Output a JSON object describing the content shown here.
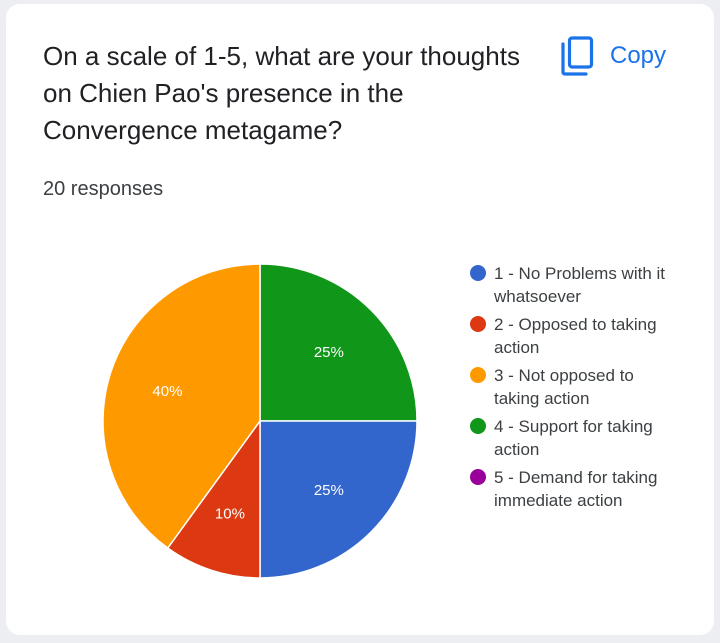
{
  "card": {
    "question": "On a scale of 1-5, what are your thoughts on Chien Pao's presence in the Convergence metagame?",
    "responses": "20 responses",
    "copy_label": "Copy",
    "copy_icon": "copy-icon"
  },
  "chart_data": {
    "type": "pie",
    "categories": [
      "1 - No Problems with it whatsoever",
      "2 - Opposed to taking action",
      "3 - Not opposed to taking action",
      "4 - Support for taking action",
      "5 - Demand for taking immediate action"
    ],
    "values": [
      25,
      10,
      40,
      25,
      0
    ],
    "counts": [
      5,
      2,
      8,
      5,
      0
    ],
    "slice_labels": [
      "25%",
      "10%",
      "40%",
      "25%",
      ""
    ],
    "colors": [
      "#3366cc",
      "#dc3912",
      "#ff9900",
      "#109618",
      "#990099"
    ],
    "label_colors": [
      "#ffffff",
      "#ffffff",
      "#ffffff",
      "#ffffff",
      "#ffffff"
    ],
    "legend_position": "right",
    "start_angle": "12 o'clock, clockwise from category 4"
  }
}
